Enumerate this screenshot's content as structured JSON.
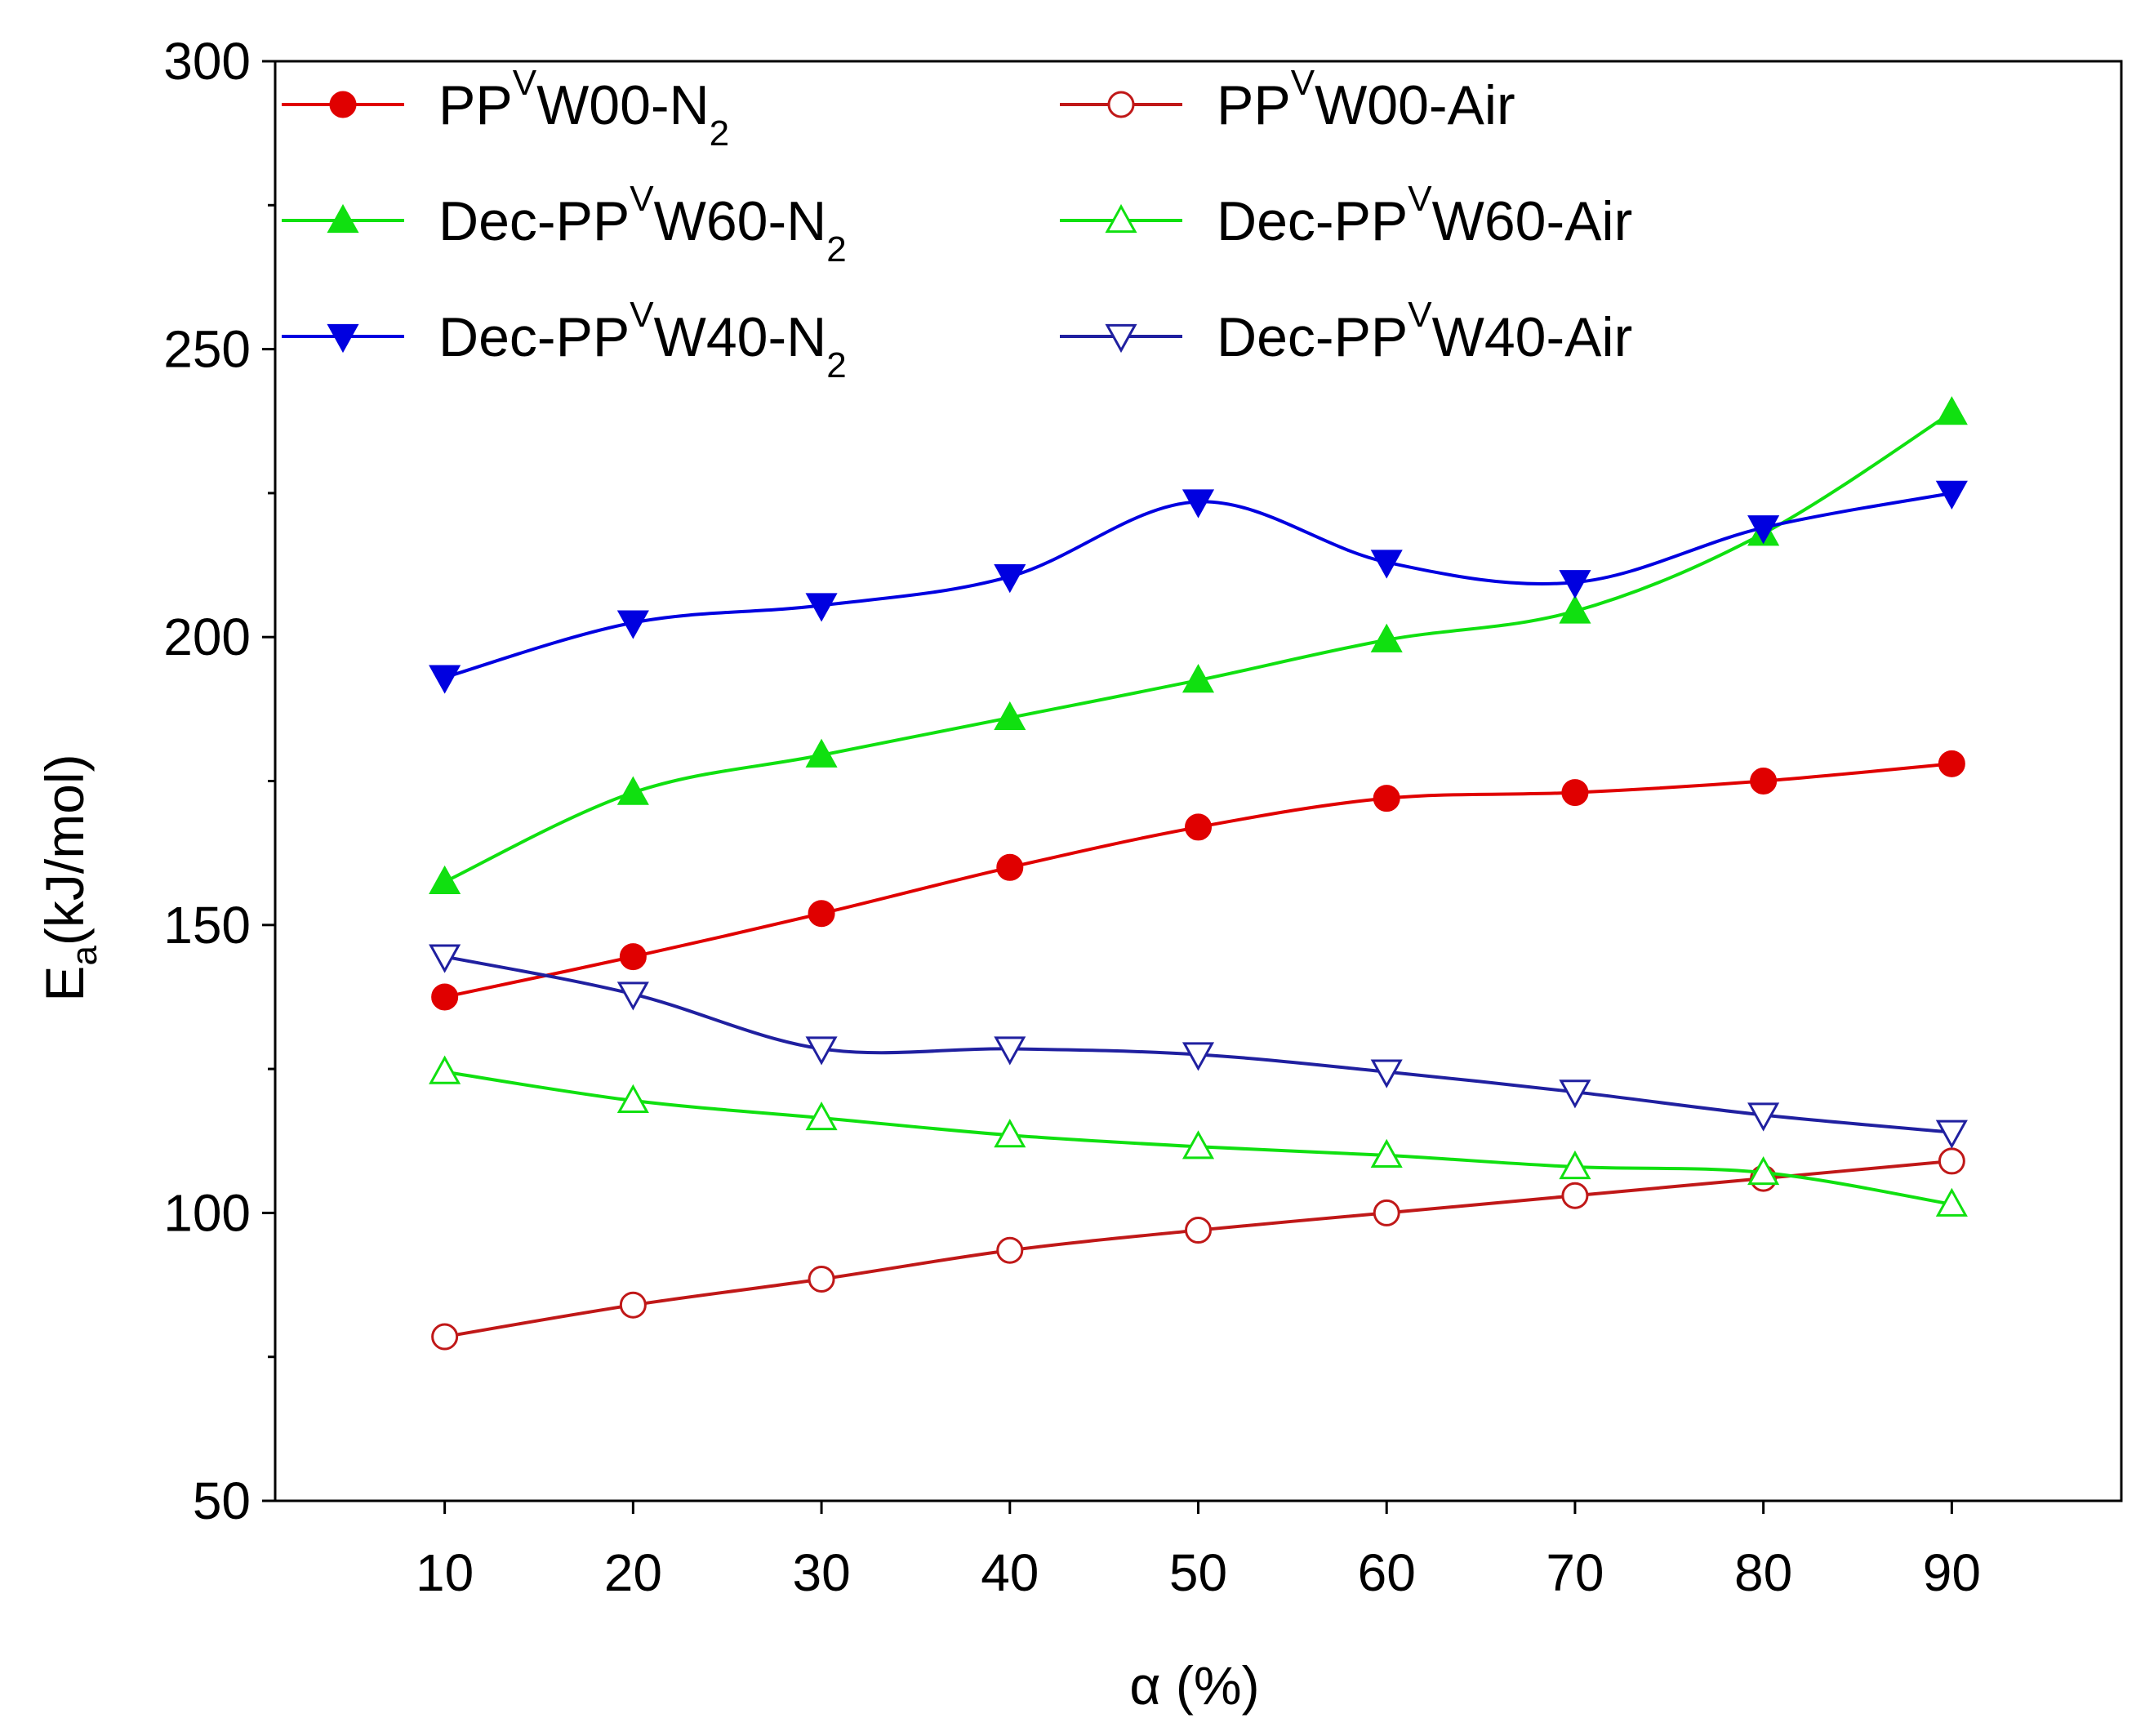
{
  "chart_data": {
    "type": "line",
    "xlabel": "α (%)",
    "ylabel": "Ea(kJ/mol)",
    "ylabel_main": "E",
    "ylabel_sub": "a",
    "ylabel_rest": "(kJ/mol)",
    "xlim": [
      1,
      99
    ],
    "ylim": [
      50,
      300
    ],
    "x": [
      10,
      20,
      30,
      40,
      50,
      60,
      70,
      80,
      90
    ],
    "x_tick_labels": [
      "10",
      "20",
      "30",
      "40",
      "50",
      "60",
      "70",
      "80",
      "90"
    ],
    "y_ticks": [
      50,
      100,
      150,
      200,
      250,
      300
    ],
    "y_tick_labels": [
      "50",
      "100",
      "150",
      "200",
      "250",
      "300"
    ],
    "legend_position": "top",
    "series": [
      {
        "name": "PPVW00-N2",
        "legend_parts": {
          "pre": "PP",
          "sup": "V",
          "mid": "W00-N",
          "sub": "2"
        },
        "color": "#e00000",
        "marker": "circle",
        "filled": true,
        "values": [
          137.5,
          144.5,
          152,
          160,
          167,
          172,
          173,
          175,
          178
        ]
      },
      {
        "name": "PPVW00-Air",
        "legend_parts": {
          "pre": "PP",
          "sup": "V",
          "mid": "W00-Air",
          "sub": ""
        },
        "color": "#c01818",
        "marker": "circle",
        "filled": false,
        "values": [
          78.5,
          84,
          88.5,
          93.5,
          97,
          100,
          103,
          106,
          109
        ]
      },
      {
        "name": "Dec-PPVW60-N2",
        "legend_parts": {
          "pre": "Dec-PP",
          "sup": "V",
          "mid": "W60-N",
          "sub": "2"
        },
        "color": "#10e010",
        "marker": "triangle-up",
        "filled": true,
        "values": [
          157.5,
          173,
          179.5,
          186,
          192.5,
          199.5,
          204.5,
          218,
          239
        ]
      },
      {
        "name": "Dec-PPVW60-Air",
        "legend_parts": {
          "pre": "Dec-PP",
          "sup": "V",
          "mid": "W60-Air",
          "sub": ""
        },
        "color": "#10e010",
        "marker": "triangle-up",
        "filled": false,
        "values": [
          124.5,
          119.5,
          116.5,
          113.5,
          111.5,
          110,
          108,
          107,
          101.5
        ]
      },
      {
        "name": "Dec-PPVW40-N2",
        "legend_parts": {
          "pre": "Dec-PP",
          "sup": "V",
          "mid": "W40-N",
          "sub": "2"
        },
        "color": "#0000e0",
        "marker": "triangle-down",
        "filled": true,
        "values": [
          193,
          202.5,
          205.5,
          210.5,
          223.5,
          213,
          209.5,
          219,
          225
        ]
      },
      {
        "name": "Dec-PPVW40-Air",
        "legend_parts": {
          "pre": "Dec-PP",
          "sup": "V",
          "mid": "W40-Air",
          "sub": ""
        },
        "color": "#2020a0",
        "marker": "triangle-down",
        "filled": false,
        "values": [
          144.5,
          138,
          128.5,
          128.5,
          127.5,
          124.5,
          121,
          117,
          114
        ]
      }
    ]
  }
}
